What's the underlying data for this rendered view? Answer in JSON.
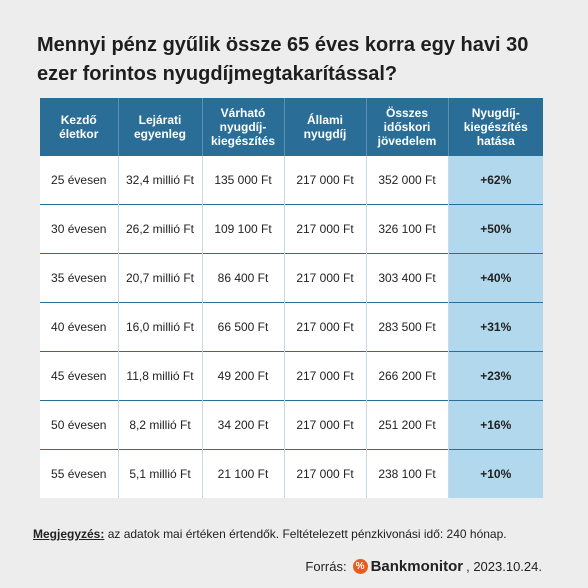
{
  "title": "Mennyi pénz gyűlik össze 65 éves korra egy havi 30 ezer forintos nyugdíjmegtakarítással?",
  "chart_data": {
    "type": "table",
    "columns": [
      "Kezdő életkor",
      "Lejárati egyenleg",
      "Várható nyugdíj-kiegészítés",
      "Állami nyugdíj",
      "Összes időskori jövedelem",
      "Nyugdíj-kiegészítés hatása"
    ],
    "rows": [
      [
        "25 évesen",
        "32,4 millió Ft",
        "135 000 Ft",
        "217 000 Ft",
        "352 000 Ft",
        "+62%"
      ],
      [
        "30 évesen",
        "26,2 millió Ft",
        "109 100 Ft",
        "217 000 Ft",
        "326 100 Ft",
        "+50%"
      ],
      [
        "35 évesen",
        "20,7 millió Ft",
        "86 400 Ft",
        "217 000 Ft",
        "303 400 Ft",
        "+40%"
      ],
      [
        "40 évesen",
        "16,0 millió Ft",
        "66 500 Ft",
        "217 000 Ft",
        "283 500 Ft",
        "+31%"
      ],
      [
        "45 évesen",
        "11,8 millió Ft",
        "49 200 Ft",
        "217 000 Ft",
        "266 200 Ft",
        "+23%"
      ],
      [
        "50 évesen",
        "8,2 millió Ft",
        "34 200 Ft",
        "217 000 Ft",
        "251 200 Ft",
        "+16%"
      ],
      [
        "55 évesen",
        "5,1 millió Ft",
        "21 100 Ft",
        "217 000 Ft",
        "238 100 Ft",
        "+10%"
      ]
    ]
  },
  "note": {
    "label": "Megjegyzés:",
    "text": " az adatok mai értéken értendők. Feltételezett pénzkivonási idő: 240 hónap."
  },
  "source": {
    "label": "Forrás:",
    "logo_text": "Bankmonitor",
    "logo_icon": "percent-icon",
    "date": ", 2023.10.24."
  },
  "colors": {
    "header_bg": "#2a6e98",
    "highlight_col": "#b1d8ec",
    "background": "#ededed",
    "logo": "#e85d1d"
  }
}
